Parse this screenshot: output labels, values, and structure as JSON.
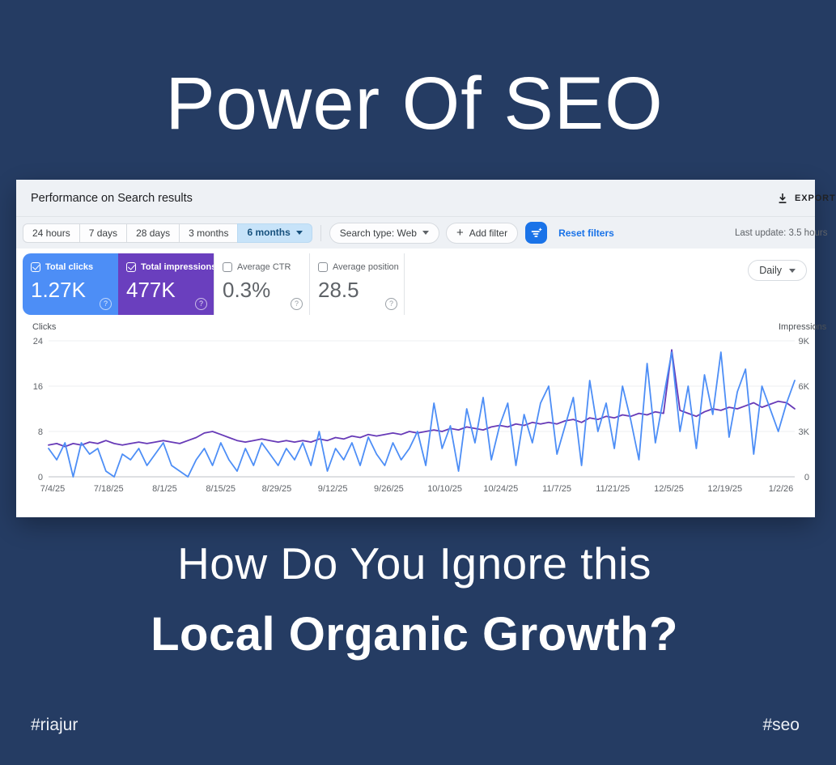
{
  "poster": {
    "title": "Power Of SEO",
    "subtitle_line1": "How Do You Ignore this",
    "subtitle_line2": "Local Organic Growth?",
    "hashtag_left": "#riajur",
    "hashtag_right": "#seo",
    "background_color": "#253c63"
  },
  "console": {
    "help_glyph": "?",
    "header": {
      "title": "Performance on Search results",
      "export_label": "EXPORT"
    },
    "filters": {
      "date_ranges": [
        "24 hours",
        "7 days",
        "28 days",
        "3 months",
        "6 months"
      ],
      "selected_range": "6 months",
      "search_type": "Search type: Web",
      "plus_glyph": "+",
      "add_filter": "Add filter",
      "reset": "Reset filters",
      "last_update": "Last update: 3.5 hours"
    },
    "cards": [
      {
        "label": "Total clicks",
        "value": "1.27K",
        "selected": true,
        "color": "#4d8ef6"
      },
      {
        "label": "Total impressions",
        "value": "477K",
        "selected": true,
        "color": "#6a3fbe"
      },
      {
        "label": "Average CTR",
        "value": "0.3%",
        "selected": false
      },
      {
        "label": "Average position",
        "value": "28.5",
        "selected": false
      }
    ],
    "granularity": "Daily"
  },
  "chart_data": {
    "type": "line",
    "title": "Performance on Search results",
    "x_labels": [
      "7/4/25",
      "7/18/25",
      "8/1/25",
      "8/15/25",
      "8/29/25",
      "9/12/25",
      "9/26/25",
      "10/10/25",
      "10/24/25",
      "11/7/25",
      "11/21/25",
      "12/5/25",
      "12/19/25",
      "1/2/26"
    ],
    "axis_left": {
      "title": "Clicks",
      "ticks": [
        "24",
        "16",
        "8",
        "0"
      ],
      "max": 24,
      "min": 0
    },
    "axis_right": {
      "title": "Impressions",
      "ticks": [
        "9K",
        "6K",
        "3K",
        "0"
      ],
      "max": 9,
      "min": 0,
      "unit": "thousands"
    },
    "grid": true,
    "legend_position": "none",
    "series": [
      {
        "name": "Clicks",
        "axis": "left",
        "color": "#4d8ef6",
        "values": [
          5,
          3,
          6,
          0,
          6,
          4,
          5,
          1,
          0,
          4,
          3,
          5,
          2,
          4,
          6,
          2,
          1,
          0,
          3,
          5,
          2,
          6,
          3,
          1,
          5,
          2,
          6,
          4,
          2,
          5,
          3,
          6,
          2,
          8,
          1,
          5,
          3,
          6,
          2,
          7,
          4,
          2,
          6,
          3,
          5,
          8,
          2,
          13,
          5,
          9,
          1,
          12,
          6,
          14,
          3,
          9,
          13,
          2,
          11,
          6,
          13,
          16,
          4,
          9,
          14,
          2,
          17,
          8,
          13,
          5,
          16,
          10,
          3,
          20,
          6,
          14,
          22,
          8,
          16,
          5,
          18,
          11,
          22,
          7,
          15,
          19,
          4,
          16,
          12,
          8,
          13,
          17
        ]
      },
      {
        "name": "Impressions",
        "axis": "right",
        "color": "#673ab7",
        "unit": "thousands",
        "values": [
          2.1,
          2.2,
          2.0,
          2.2,
          2.1,
          2.3,
          2.2,
          2.4,
          2.2,
          2.1,
          2.2,
          2.3,
          2.2,
          2.3,
          2.4,
          2.3,
          2.2,
          2.4,
          2.6,
          2.9,
          3.0,
          2.8,
          2.6,
          2.4,
          2.3,
          2.4,
          2.5,
          2.4,
          2.3,
          2.4,
          2.3,
          2.4,
          2.3,
          2.5,
          2.4,
          2.6,
          2.5,
          2.7,
          2.6,
          2.8,
          2.7,
          2.8,
          2.9,
          2.8,
          3.0,
          2.9,
          3.0,
          3.1,
          3.0,
          3.2,
          3.1,
          3.3,
          3.2,
          3.1,
          3.3,
          3.4,
          3.3,
          3.5,
          3.4,
          3.6,
          3.5,
          3.6,
          3.5,
          3.7,
          3.8,
          3.6,
          3.9,
          3.8,
          4.0,
          3.9,
          4.1,
          4.0,
          4.2,
          4.1,
          4.3,
          4.2,
          8.4,
          4.4,
          4.2,
          4.0,
          4.3,
          4.5,
          4.4,
          4.6,
          4.5,
          4.7,
          4.9,
          4.6,
          4.8,
          5.0,
          4.9,
          4.5
        ]
      }
    ]
  }
}
